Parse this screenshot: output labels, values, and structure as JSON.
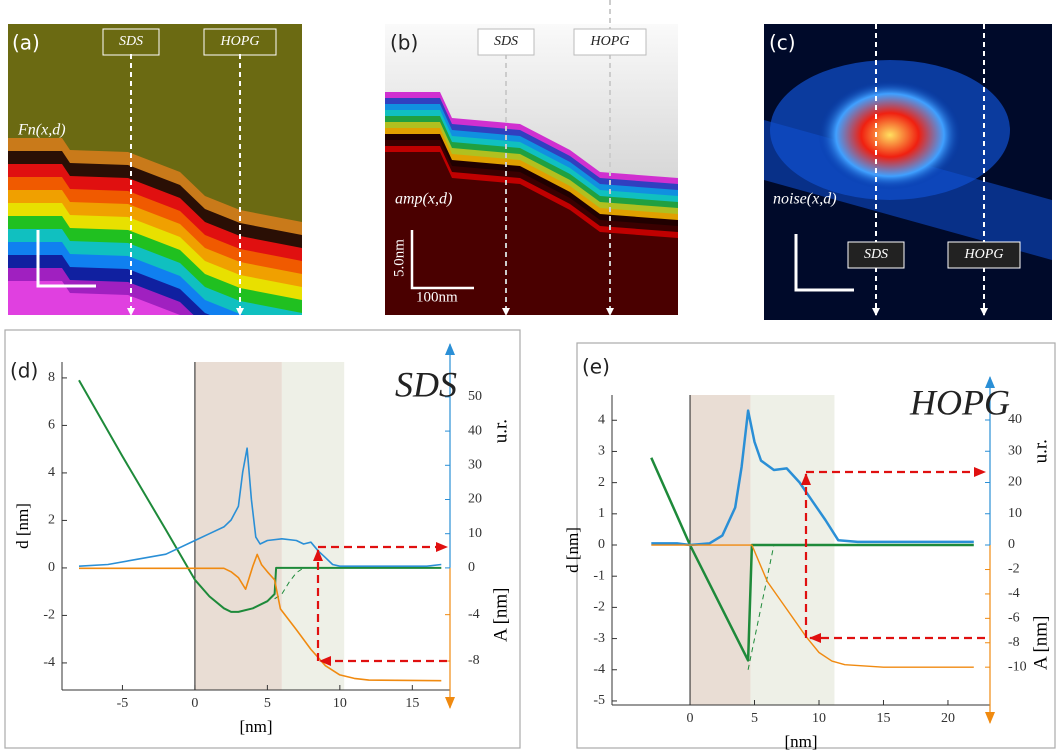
{
  "images": [
    {
      "label": "(a)",
      "tip_labels": [
        "SDS",
        "HOPG"
      ],
      "map_label": "Fn(x,d)"
    },
    {
      "label": "(b)",
      "tip_labels": [
        "SDS",
        "HOPG"
      ],
      "map_label": "amp(x,d)",
      "scale_labels": [
        "5.0nm",
        "100nm"
      ]
    },
    {
      "label": "(c)",
      "tip_labels": [
        "SDS",
        "HOPG"
      ],
      "map_label": "noise(x,d)"
    }
  ],
  "chart_data": [
    {
      "type": "line",
      "panel_label": "(d)",
      "title": "SDS",
      "xlabel": "[nm]",
      "ylabel": "d [nm]",
      "y2label": "u.r.",
      "y3label": "A [nm]",
      "xlim": [
        -9.17,
        17.6
      ],
      "xticks": [
        -5,
        0,
        5,
        10,
        15
      ],
      "ylim": [
        -5.14,
        8.67
      ],
      "yticks": [
        -4,
        -2,
        0,
        2,
        4,
        6,
        8
      ],
      "y2lim": [
        -35.7,
        60.2
      ],
      "y2ticks": [
        0,
        10,
        20,
        30,
        40,
        50
      ],
      "y3lim": [
        -10.5,
        17.8
      ],
      "y3ticks": [
        -4,
        -8
      ],
      "bands": [
        {
          "x": [
            0,
            6
          ],
          "color": "#e9ddd4"
        },
        {
          "x": [
            6,
            10.3
          ],
          "color": "#eef0e7"
        }
      ],
      "series": [
        {
          "axis": "y",
          "color": "#1e8a3a",
          "width": 2,
          "x": [
            -8,
            -5,
            -2,
            0,
            1,
            2,
            2.5,
            3,
            4,
            5,
            5.5,
            5.6,
            6,
            10,
            17
          ],
          "values": [
            7.9,
            4.7,
            1.6,
            -0.5,
            -1.2,
            -1.7,
            -1.85,
            -1.85,
            -1.7,
            -1.4,
            -1.1,
            0,
            0,
            0,
            0
          ]
        },
        {
          "axis": "y",
          "color": "#1e8a3a",
          "width": 1,
          "dash": true,
          "x": [
            5.5,
            6,
            6.5,
            7,
            7.5
          ],
          "values": [
            -1.3,
            -1.1,
            -0.6,
            -0.2,
            0
          ]
        },
        {
          "axis": "y2",
          "color": "#2a8fd6",
          "width": 1.6,
          "x": [
            -8,
            -6,
            -4,
            -2,
            0,
            1,
            2,
            2.5,
            3,
            3.3,
            3.6,
            3.9,
            4.2,
            4.5,
            5,
            6,
            7,
            7.5,
            8,
            8.5,
            9,
            9.5,
            10,
            12,
            14,
            16,
            17
          ],
          "values": [
            0.5,
            1,
            2.5,
            4,
            8,
            10,
            12,
            14,
            18,
            28,
            35,
            20,
            9,
            7,
            8,
            8.5,
            8,
            7,
            7.5,
            5,
            3,
            1,
            0.5,
            0.5,
            0.5,
            0.5,
            1
          ]
        },
        {
          "axis": "y3",
          "color": "#f08a10",
          "width": 1.6,
          "x": [
            -8,
            0,
            2,
            2.5,
            3,
            3.5,
            4,
            4.3,
            4.6,
            5,
            5.5,
            5.9,
            7,
            8,
            9,
            10,
            11,
            12,
            17
          ],
          "values": [
            0,
            0,
            0,
            -0.3,
            -0.8,
            -1.8,
            0.2,
            1.2,
            0.3,
            -0.3,
            -1,
            -3.5,
            -5.3,
            -7,
            -8.4,
            -9.2,
            -9.5,
            -9.65,
            -9.7
          ]
        }
      ]
    },
    {
      "type": "line",
      "panel_label": "(e)",
      "title": "HOPG",
      "xlabel": "[nm]",
      "ylabel": "d [nm]",
      "y2label": "u.r.",
      "y3label": "A [nm]",
      "xlim": [
        -6.05,
        23.26
      ],
      "xticks": [
        0,
        5,
        10,
        15,
        20
      ],
      "ylim": [
        -5.13,
        4.81
      ],
      "yticks": [
        -5,
        -4,
        -3,
        -2,
        -1,
        0,
        1,
        2,
        3,
        4
      ],
      "y2lim": [
        -51.2,
        48
      ],
      "y2ticks": [
        0,
        10,
        20,
        30,
        40
      ],
      "y3lim": [
        -13.1,
        12.3
      ],
      "y3ticks": [
        -2,
        -4,
        -6,
        -8,
        -10
      ],
      "bands": [
        {
          "x": [
            0,
            4.7
          ],
          "color": "#e9ddd4"
        },
        {
          "x": [
            4.7,
            11.2
          ],
          "color": "#eef0e7"
        }
      ],
      "series": [
        {
          "axis": "y",
          "color": "#1e8a3a",
          "width": 2.5,
          "x": [
            -3,
            0,
            4.5,
            4.8,
            22
          ],
          "values": [
            2.8,
            0,
            -3.7,
            0,
            0
          ]
        },
        {
          "axis": "y",
          "color": "#1e8a3a",
          "width": 1,
          "dash": true,
          "x": [
            4.5,
            5.5,
            6.5
          ],
          "values": [
            -4,
            -2,
            0
          ]
        },
        {
          "axis": "y2",
          "color": "#2a8fd6",
          "width": 2.5,
          "x": [
            -3,
            -1,
            0,
            1.5,
            2.5,
            3.5,
            4,
            4.5,
            5,
            5.5,
            6.5,
            7.5,
            8.5,
            9.5,
            10.5,
            11.5,
            13,
            16,
            19,
            22
          ],
          "values": [
            0.5,
            0.5,
            0,
            0.5,
            3,
            12,
            25,
            43,
            33,
            27,
            24,
            24.5,
            20,
            14,
            8,
            1.5,
            1,
            1,
            1,
            1
          ]
        },
        {
          "axis": "y3",
          "color": "#f08a10",
          "width": 1.4,
          "x": [
            -3,
            4.8,
            5,
            6,
            7,
            8,
            9,
            10,
            11,
            12,
            15,
            22
          ],
          "values": [
            0,
            0,
            -0.5,
            -3,
            -4.5,
            -6,
            -7.5,
            -8.8,
            -9.5,
            -9.8,
            -10,
            -10
          ]
        }
      ]
    }
  ]
}
